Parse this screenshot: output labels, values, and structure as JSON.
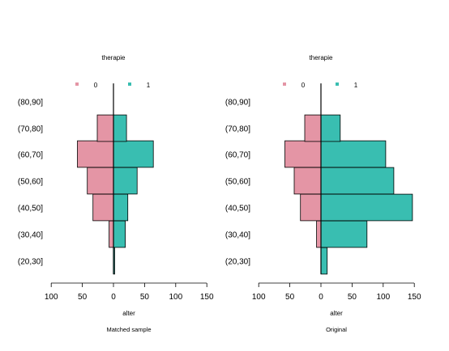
{
  "colors": {
    "group0": "#E495A5",
    "group1": "#39BEB1",
    "stroke": "#000000"
  },
  "chart_data": [
    {
      "type": "bar",
      "orientation": "back-to-back horizontal",
      "title": "Matched sample",
      "legend_title": "therapie",
      "legend": [
        "0",
        "1"
      ],
      "xlabel": "alter",
      "xlim": [
        100,
        150
      ],
      "xticks": [
        "100",
        "50",
        "0",
        "50",
        "100",
        "150"
      ],
      "categories": [
        "(20,30]",
        "(30,40]",
        "(40,50]",
        "(50,60]",
        "(60,70]",
        "(70,80]",
        "(80,90]"
      ],
      "series": [
        {
          "name": "0",
          "values": [
            0,
            7,
            33,
            42,
            58,
            26,
            0
          ]
        },
        {
          "name": "1",
          "values": [
            2,
            19,
            23,
            38,
            64,
            21,
            0
          ]
        }
      ]
    },
    {
      "type": "bar",
      "orientation": "back-to-back horizontal",
      "title": "Original",
      "legend_title": "therapie",
      "legend": [
        "0",
        "1"
      ],
      "xlabel": "alter",
      "xlim": [
        100,
        150
      ],
      "xticks": [
        "100",
        "50",
        "0",
        "50",
        "100",
        "150"
      ],
      "categories": [
        "(20,30]",
        "(30,40]",
        "(40,50]",
        "(50,60]",
        "(60,70]",
        "(70,80]",
        "(80,90]"
      ],
      "series": [
        {
          "name": "0",
          "values": [
            0,
            7,
            33,
            43,
            58,
            26,
            0
          ]
        },
        {
          "name": "1",
          "values": [
            10,
            74,
            147,
            117,
            104,
            31,
            0
          ]
        }
      ]
    }
  ]
}
